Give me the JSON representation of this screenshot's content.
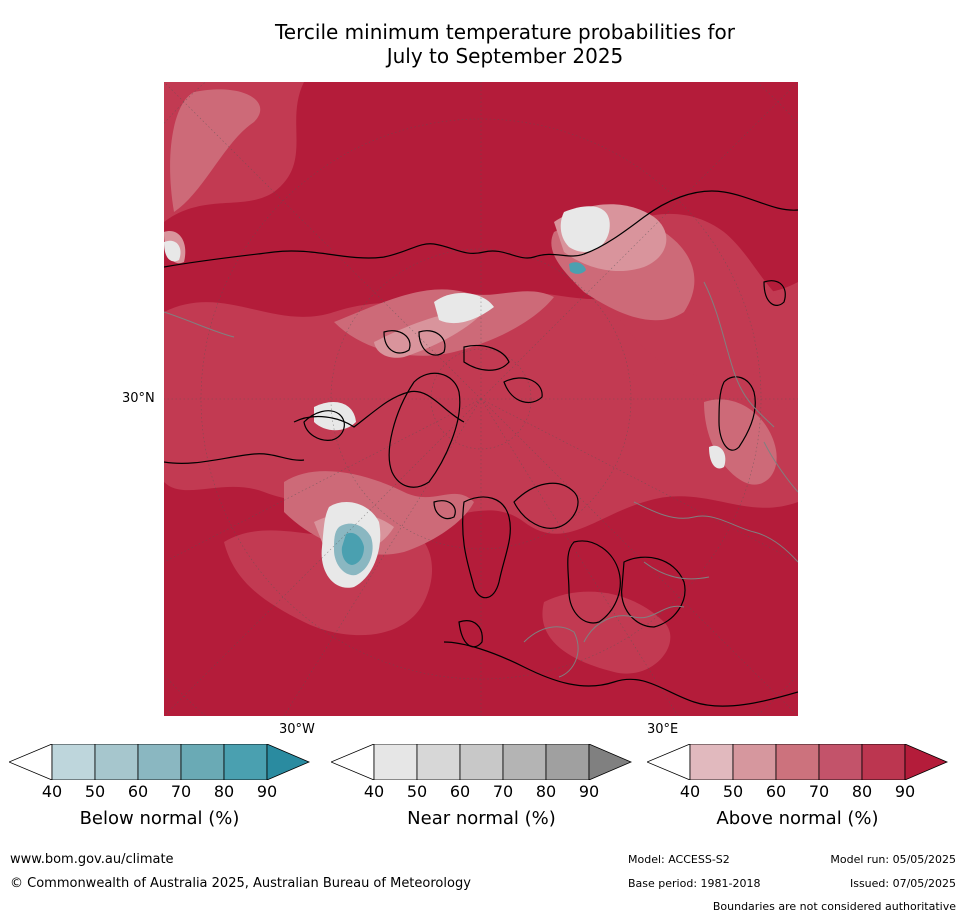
{
  "title_line1": "Tercile minimum temperature probabilities for",
  "title_line2": "July to September 2025",
  "map": {
    "labels": {
      "lat_30n": "30°N",
      "lon_30w": "30°W",
      "lon_30e": "30°E"
    },
    "colors": {
      "above_90": "#b41c3a",
      "above_80": "#c23a52",
      "above_70": "#cd6a78",
      "above_60": "#d9949c",
      "near_normal": "#e8e8e8",
      "below_80": "#4aa0b0",
      "coastline": "#000000",
      "borders": "#808080"
    }
  },
  "colorbars": [
    {
      "label": "Below normal (%)",
      "ticks": [
        "40",
        "50",
        "60",
        "70",
        "80",
        "90"
      ],
      "colors": [
        "#ffffff",
        "#bed6dc",
        "#a6c6cd",
        "#8ab7c1",
        "#6aaab5",
        "#4aa0b0",
        "#2a8ba0"
      ]
    },
    {
      "label": "Near normal (%)",
      "ticks": [
        "40",
        "50",
        "60",
        "70",
        "80",
        "90"
      ],
      "colors": [
        "#ffffff",
        "#e6e6e6",
        "#d7d7d7",
        "#c8c8c8",
        "#b4b4b4",
        "#a0a0a0",
        "#808080"
      ]
    },
    {
      "label": "Above normal (%)",
      "ticks": [
        "40",
        "50",
        "60",
        "70",
        "80",
        "90"
      ],
      "colors": [
        "#ffffff",
        "#e1b9be",
        "#d6979e",
        "#cc727d",
        "#c3536a",
        "#bc3650",
        "#b41c3a"
      ]
    }
  ],
  "footer": {
    "website": "www.bom.gov.au/climate",
    "copyright": "© Commonwealth of Australia 2025, Australian Bureau of Meteorology",
    "model": "Model: ACCESS-S2",
    "base_period": "Base period: 1981-2018",
    "model_run": "Model run: 05/05/2025",
    "issued": "Issued: 07/05/2025",
    "disclaimer": "Boundaries are not considered authoritative"
  }
}
